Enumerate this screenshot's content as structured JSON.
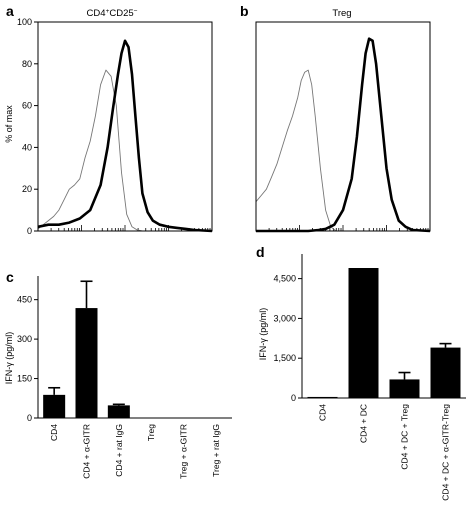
{
  "chart_data": [
    {
      "panel": "a",
      "type": "line",
      "title": "CD4+CD25−",
      "title_parts": [
        "CD4",
        "+",
        "CD25",
        "−"
      ],
      "ylabel": "% of max",
      "xlabel": "",
      "ylim": [
        0,
        100
      ],
      "yticks": [
        "0",
        "20",
        "40",
        "60",
        "80",
        "100"
      ],
      "x_log_scale": true,
      "series": [
        {
          "style": "thin-gray",
          "x": [
            0,
            0.03,
            0.06,
            0.09,
            0.12,
            0.15,
            0.18,
            0.21,
            0.24,
            0.27,
            0.3,
            0.33,
            0.36,
            0.39,
            0.42,
            0.45,
            0.48,
            0.51,
            0.54,
            0.57,
            0.6,
            0.63,
            1.0
          ],
          "y": [
            1,
            3,
            5,
            7,
            10,
            15,
            20,
            22,
            25,
            35,
            43,
            55,
            70,
            77,
            74,
            60,
            28,
            8,
            2,
            0.5,
            0,
            0,
            0
          ]
        },
        {
          "style": "thick-black",
          "x": [
            0,
            0.06,
            0.12,
            0.18,
            0.24,
            0.3,
            0.36,
            0.4,
            0.43,
            0.46,
            0.48,
            0.5,
            0.52,
            0.54,
            0.56,
            0.58,
            0.6,
            0.63,
            0.66,
            0.7,
            0.75,
            0.8,
            0.85,
            0.9,
            1.0
          ],
          "y": [
            2,
            3,
            3,
            4,
            6,
            10,
            22,
            40,
            58,
            75,
            85,
            91,
            88,
            75,
            55,
            35,
            18,
            9,
            5,
            3,
            2,
            1.5,
            1,
            0.5,
            0
          ]
        }
      ]
    },
    {
      "panel": "b",
      "type": "line",
      "title": "Treg",
      "ylabel": "",
      "xlabel": "",
      "ylim": [
        0,
        100
      ],
      "x_log_scale": true,
      "series": [
        {
          "style": "thin-gray",
          "x": [
            0,
            0.03,
            0.06,
            0.09,
            0.12,
            0.15,
            0.18,
            0.21,
            0.24,
            0.26,
            0.28,
            0.3,
            0.32,
            0.34,
            0.37,
            0.4,
            0.43,
            0.46,
            1.0
          ],
          "y": [
            14,
            17,
            20,
            26,
            32,
            40,
            48,
            55,
            64,
            72,
            76,
            77,
            70,
            55,
            30,
            10,
            2,
            0,
            0
          ]
        },
        {
          "style": "thick-black",
          "x": [
            0,
            0.2,
            0.3,
            0.36,
            0.4,
            0.45,
            0.5,
            0.55,
            0.58,
            0.61,
            0.63,
            0.65,
            0.67,
            0.69,
            0.72,
            0.75,
            0.78,
            0.82,
            0.86,
            0.9,
            1.0
          ],
          "y": [
            0,
            0,
            0,
            0.5,
            1,
            3,
            10,
            25,
            45,
            70,
            85,
            92,
            91,
            80,
            55,
            30,
            15,
            5,
            2,
            0.5,
            0
          ]
        }
      ]
    },
    {
      "panel": "c",
      "type": "bar",
      "title": "",
      "ylabel": "IFN-γ (pg/ml)",
      "xlabel": "",
      "ylim": [
        0,
        540
      ],
      "yticks": [
        "0",
        "150",
        "300",
        "450"
      ],
      "ytick_values": [
        0,
        150,
        300,
        450
      ],
      "categories": [
        "CD4",
        "CD4 + α-GITR",
        "CD4 + rat IgG",
        "Treg",
        "Treg + α-GITR",
        "Treg + rat IgG"
      ],
      "values": [
        88,
        418,
        48,
        0,
        0,
        0
      ],
      "errors": [
        27,
        102,
        4,
        0,
        0,
        0
      ]
    },
    {
      "panel": "d",
      "type": "bar",
      "title": "",
      "ylabel": "IFN-γ (pg/ml)",
      "xlabel": "",
      "ylim": [
        0,
        4900
      ],
      "yticks": [
        "0",
        "1,500",
        "3,000",
        "4,500"
      ],
      "ytick_values": [
        0,
        1500,
        3000,
        4500
      ],
      "categories": [
        "CD4",
        "CD4 + DC",
        "CD4 + DC + Treg",
        "CD4 + DC + α-GITR-Treg"
      ],
      "values": [
        40,
        4900,
        700,
        1900
      ],
      "errors": [
        0,
        0,
        260,
        150
      ]
    }
  ]
}
